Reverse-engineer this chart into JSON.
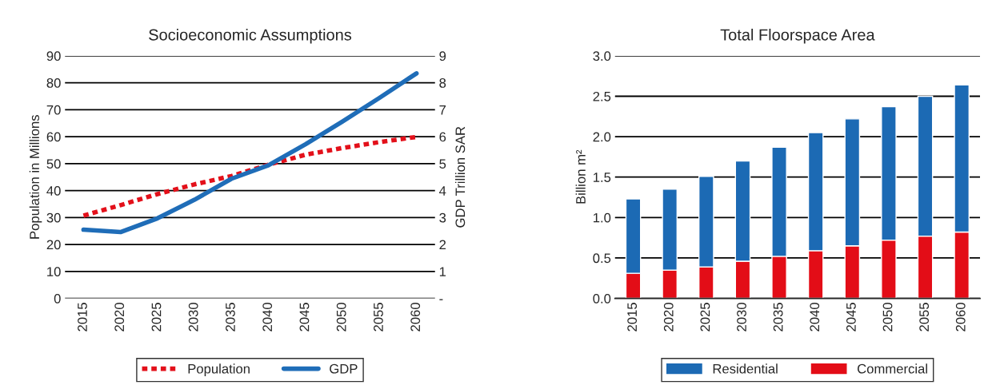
{
  "chart_data": [
    {
      "type": "line",
      "title": "Socioeconomic Assumptions",
      "ylabel": "Population in Millions",
      "y2label": "GDP Trillion SAR",
      "categories": [
        "2015",
        "2020",
        "2025",
        "2030",
        "2035",
        "2040",
        "2045",
        "2050",
        "2055",
        "2060"
      ],
      "series": [
        {
          "name": "Population",
          "color": "#e3101a",
          "line_style": "dotted",
          "values": [
            30.7,
            34.6,
            38.7,
            42.3,
            45.4,
            49.6,
            53.3,
            55.8,
            58.0,
            59.9
          ]
        },
        {
          "name": "GDP",
          "color": "#1f6db8",
          "line_style": "solid",
          "axis": "y2",
          "values": [
            2.55,
            2.46,
            2.97,
            3.66,
            4.44,
            4.94,
            5.72,
            6.56,
            7.44,
            8.35
          ]
        }
      ],
      "ylim": [
        0,
        90
      ],
      "yticks": [
        0,
        10,
        20,
        30,
        40,
        50,
        60,
        70,
        80,
        90
      ],
      "y2lim": [
        0,
        9
      ],
      "y2ticks": [
        {
          "value": 0,
          "label": "-"
        },
        1,
        2,
        3,
        4,
        5,
        6,
        7,
        8,
        9
      ],
      "grid": "y",
      "legend": "bottom",
      "marker": "none"
    },
    {
      "type": "bar",
      "stacked": true,
      "title": "Total Floorspace Area",
      "ylabel": "Billion m²",
      "categories": [
        "2015",
        "2020",
        "2025",
        "2030",
        "2035",
        "2040",
        "2045",
        "2050",
        "2055",
        "2060"
      ],
      "series": [
        {
          "name": "Commercial",
          "color": "#e30d17",
          "values": [
            0.31,
            0.35,
            0.39,
            0.46,
            0.52,
            0.59,
            0.65,
            0.72,
            0.77,
            0.82
          ]
        },
        {
          "name": "Residential",
          "color": "#1c6ab4",
          "values": [
            0.92,
            1.0,
            1.12,
            1.24,
            1.35,
            1.46,
            1.57,
            1.65,
            1.73,
            1.82
          ]
        }
      ],
      "ylim": [
        0,
        3.0
      ],
      "yticks": [
        {
          "value": 0,
          "label": "0.0"
        },
        {
          "value": 0.5,
          "label": "0.5"
        },
        {
          "value": 1,
          "label": "1.0"
        },
        {
          "value": 1.5,
          "label": "1.5"
        },
        {
          "value": 2,
          "label": "2.0"
        },
        {
          "value": 2.5,
          "label": "2.5"
        },
        {
          "value": 3,
          "label": "3.0"
        }
      ],
      "grid": "y",
      "legend": "bottom"
    }
  ]
}
